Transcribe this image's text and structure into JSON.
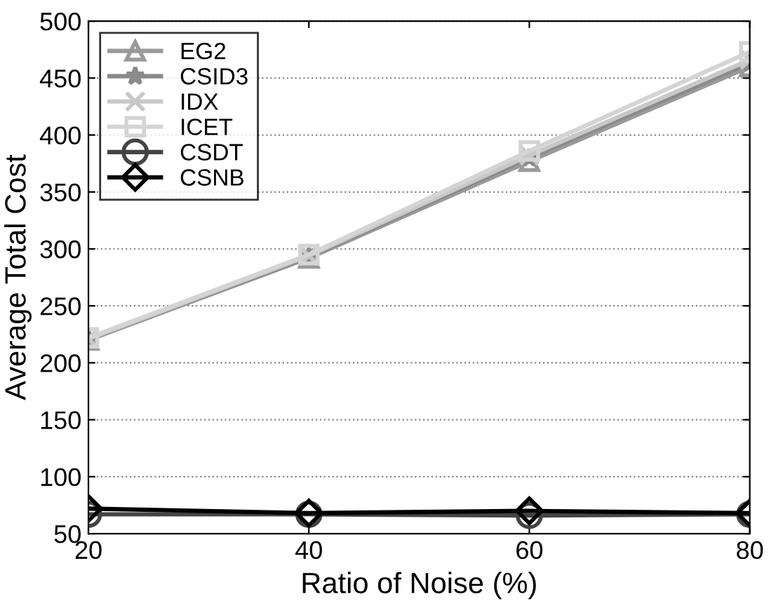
{
  "chart_data": {
    "type": "line",
    "xlabel": "Ratio of Noise (%)",
    "ylabel": "Average Total Cost",
    "x": [
      20,
      40,
      60,
      80
    ],
    "xlim": [
      20,
      80
    ],
    "xticks": [
      20,
      40,
      60,
      80
    ],
    "ylim": [
      50,
      500
    ],
    "yticks": [
      50,
      100,
      150,
      200,
      250,
      300,
      350,
      400,
      450,
      500
    ],
    "grid": "y",
    "legend": "top left",
    "series": [
      {
        "name": "EG2",
        "color": "#9a9a9a",
        "marker": "triangle",
        "values": [
          220,
          292,
          377,
          460
        ]
      },
      {
        "name": "CSID3",
        "color": "#8a8a8a",
        "marker": "star",
        "values": [
          221,
          293,
          380,
          463
        ]
      },
      {
        "name": "IDX",
        "color": "#c8c8c8",
        "marker": "cross",
        "values": [
          221,
          294,
          382,
          466
        ]
      },
      {
        "name": "ICET",
        "color": "#d4d4d4",
        "marker": "square",
        "values": [
          222,
          295,
          386,
          473
        ]
      },
      {
        "name": "CSDT",
        "color": "#444444",
        "marker": "circle",
        "values": [
          67,
          67,
          66,
          67
        ]
      },
      {
        "name": "CSNB",
        "color": "#000000",
        "marker": "diamond",
        "values": [
          72,
          68,
          70,
          68
        ]
      }
    ]
  }
}
